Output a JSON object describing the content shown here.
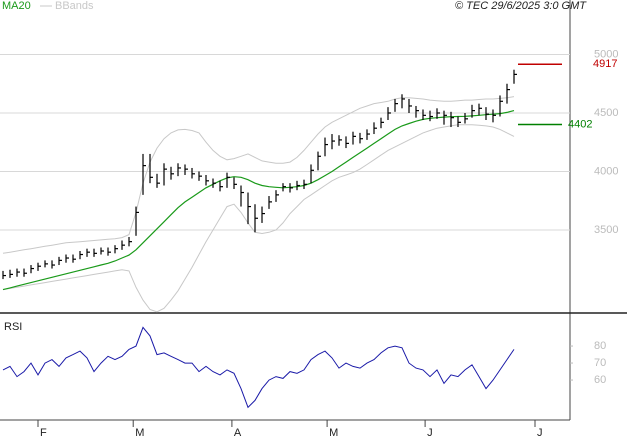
{
  "chart_data": [
    {
      "type": "ohlc",
      "source": "© TEC 29/6/2025 3:0 GMT",
      "ylim": [
        2790,
        5466
      ],
      "yticks": [
        3500,
        4000,
        4500,
        5000
      ],
      "grid": true,
      "xlim": [
        -0.43,
        81
      ],
      "color": "#000000",
      "high": [
        3150,
        3160,
        3170,
        3170,
        3200,
        3220,
        3240,
        3240,
        3270,
        3290,
        3290,
        3320,
        3340,
        3340,
        3350,
        3350,
        3370,
        3410,
        3440,
        3700,
        4150,
        4150,
        3980,
        4070,
        4040,
        4070,
        4060,
        4030,
        4000,
        3970,
        3940,
        3920,
        3990,
        3950,
        3880,
        3820,
        3720,
        3700,
        3790,
        3840,
        3900,
        3900,
        3920,
        3930,
        4060,
        4170,
        4290,
        4320,
        4310,
        4300,
        4340,
        4330,
        4360,
        4420,
        4460,
        4550,
        4620,
        4660,
        4620,
        4560,
        4530,
        4520,
        4540,
        4520,
        4510,
        4470,
        4500,
        4570,
        4580,
        4550,
        4530,
        4650,
        4750,
        4870
      ],
      "low": [
        3080,
        3090,
        3100,
        3100,
        3130,
        3150,
        3180,
        3170,
        3200,
        3220,
        3220,
        3250,
        3270,
        3270,
        3290,
        3280,
        3300,
        3330,
        3360,
        3450,
        3800,
        3900,
        3860,
        3880,
        3930,
        3960,
        3970,
        3940,
        3920,
        3880,
        3860,
        3830,
        3860,
        3850,
        3700,
        3550,
        3480,
        3560,
        3680,
        3740,
        3830,
        3820,
        3840,
        3850,
        3900,
        4010,
        4130,
        4190,
        4220,
        4200,
        4230,
        4240,
        4270,
        4320,
        4370,
        4440,
        4510,
        4540,
        4500,
        4460,
        4440,
        4430,
        4450,
        4400,
        4380,
        4380,
        4410,
        4460,
        4480,
        4440,
        4420,
        4470,
        4580,
        4750
      ],
      "close": [
        3110,
        3120,
        3140,
        3130,
        3170,
        3190,
        3210,
        3200,
        3240,
        3260,
        3250,
        3290,
        3310,
        3300,
        3320,
        3310,
        3340,
        3370,
        3400,
        3650,
        4050,
        3950,
        3900,
        4020,
        3980,
        4030,
        4020,
        3980,
        3960,
        3920,
        3900,
        3870,
        3950,
        3890,
        3820,
        3700,
        3600,
        3640,
        3740,
        3800,
        3870,
        3860,
        3880,
        3890,
        4010,
        4130,
        4230,
        4260,
        4270,
        4240,
        4300,
        4280,
        4320,
        4370,
        4420,
        4500,
        4580,
        4620,
        4560,
        4520,
        4480,
        4470,
        4500,
        4480,
        4460,
        4420,
        4450,
        4520,
        4540,
        4490,
        4480,
        4600,
        4700,
        4830
      ],
      "series": [
        {
          "name": "MA20",
          "color": "#1a9a1a",
          "values": [
            2990,
            3005,
            3020,
            3035,
            3050,
            3065,
            3080,
            3095,
            3110,
            3125,
            3140,
            3155,
            3170,
            3185,
            3200,
            3215,
            3235,
            3260,
            3285,
            3330,
            3390,
            3450,
            3510,
            3570,
            3630,
            3690,
            3740,
            3780,
            3820,
            3860,
            3890,
            3920,
            3945,
            3955,
            3950,
            3930,
            3900,
            3880,
            3870,
            3865,
            3860,
            3865,
            3870,
            3880,
            3900,
            3930,
            3965,
            4000,
            4040,
            4080,
            4120,
            4160,
            4200,
            4240,
            4280,
            4320,
            4360,
            4390,
            4410,
            4430,
            4445,
            4455,
            4460,
            4465,
            4468,
            4470,
            4472,
            4475,
            4480,
            4485,
            4490,
            4495,
            4505,
            4520
          ]
        }
      ],
      "bands": {
        "name": "BBands",
        "color": "#c8c8c8",
        "upper": [
          3300,
          3310,
          3320,
          3330,
          3340,
          3350,
          3360,
          3370,
          3380,
          3390,
          3395,
          3400,
          3405,
          3410,
          3415,
          3420,
          3425,
          3435,
          3460,
          3650,
          3900,
          4080,
          4200,
          4280,
          4330,
          4355,
          4360,
          4350,
          4330,
          4250,
          4180,
          4130,
          4100,
          4110,
          4130,
          4150,
          4120,
          4090,
          4080,
          4070,
          4070,
          4080,
          4120,
          4180,
          4250,
          4320,
          4380,
          4420,
          4450,
          4480,
          4510,
          4540,
          4560,
          4580,
          4590,
          4600,
          4620,
          4630,
          4630,
          4625,
          4620,
          4610,
          4605,
          4600,
          4600,
          4605,
          4610,
          4610,
          4615,
          4620,
          4620,
          4625,
          4630,
          4640
        ],
        "lower": [
          2990,
          3000,
          3010,
          3020,
          3030,
          3040,
          3050,
          3060,
          3070,
          3080,
          3090,
          3100,
          3110,
          3120,
          3130,
          3140,
          3150,
          3160,
          3150,
          3010,
          2900,
          2820,
          2800,
          2830,
          2900,
          2980,
          3080,
          3180,
          3290,
          3400,
          3500,
          3600,
          3700,
          3720,
          3650,
          3560,
          3480,
          3470,
          3480,
          3500,
          3560,
          3640,
          3700,
          3760,
          3800,
          3840,
          3880,
          3920,
          3950,
          3970,
          3990,
          4020,
          4060,
          4100,
          4140,
          4180,
          4210,
          4240,
          4270,
          4300,
          4330,
          4350,
          4370,
          4380,
          4390,
          4400,
          4400,
          4400,
          4395,
          4390,
          4380,
          4360,
          4330,
          4300
        ]
      },
      "levels": [
        {
          "value": 4917,
          "color": "#c00000"
        },
        {
          "value": 4402,
          "color": "#008000"
        }
      ]
    },
    {
      "type": "line",
      "title": "RSI",
      "ylim": [
        36.5,
        96.5
      ],
      "yticks": [
        60,
        70,
        80
      ],
      "xlim": [
        -0.43,
        81
      ],
      "xticks": [
        {
          "value": 5,
          "label": "F"
        },
        {
          "value": 18.6,
          "label": "M"
        },
        {
          "value": 32.7,
          "label": "A"
        },
        {
          "value": 46.3,
          "label": "M"
        },
        {
          "value": 60.3,
          "label": "J"
        },
        {
          "value": 76,
          "label": "J"
        }
      ],
      "color": "#1a1aa8",
      "values": [
        66,
        68,
        62,
        65,
        70,
        63,
        70,
        72,
        68,
        73,
        75,
        77,
        73,
        65,
        70,
        74,
        72,
        74,
        78,
        80,
        91,
        86,
        75,
        76,
        74,
        72,
        70,
        70,
        65,
        68,
        65,
        63,
        66,
        64,
        55,
        44,
        48,
        55,
        60,
        62,
        61,
        65,
        64,
        66,
        72,
        75,
        77,
        73,
        67,
        70,
        68,
        67,
        70,
        72,
        76,
        79,
        80,
        79,
        70,
        67,
        66,
        62,
        66,
        58,
        63,
        62,
        66,
        69,
        62,
        55,
        60,
        66,
        72,
        78
      ]
    }
  ]
}
